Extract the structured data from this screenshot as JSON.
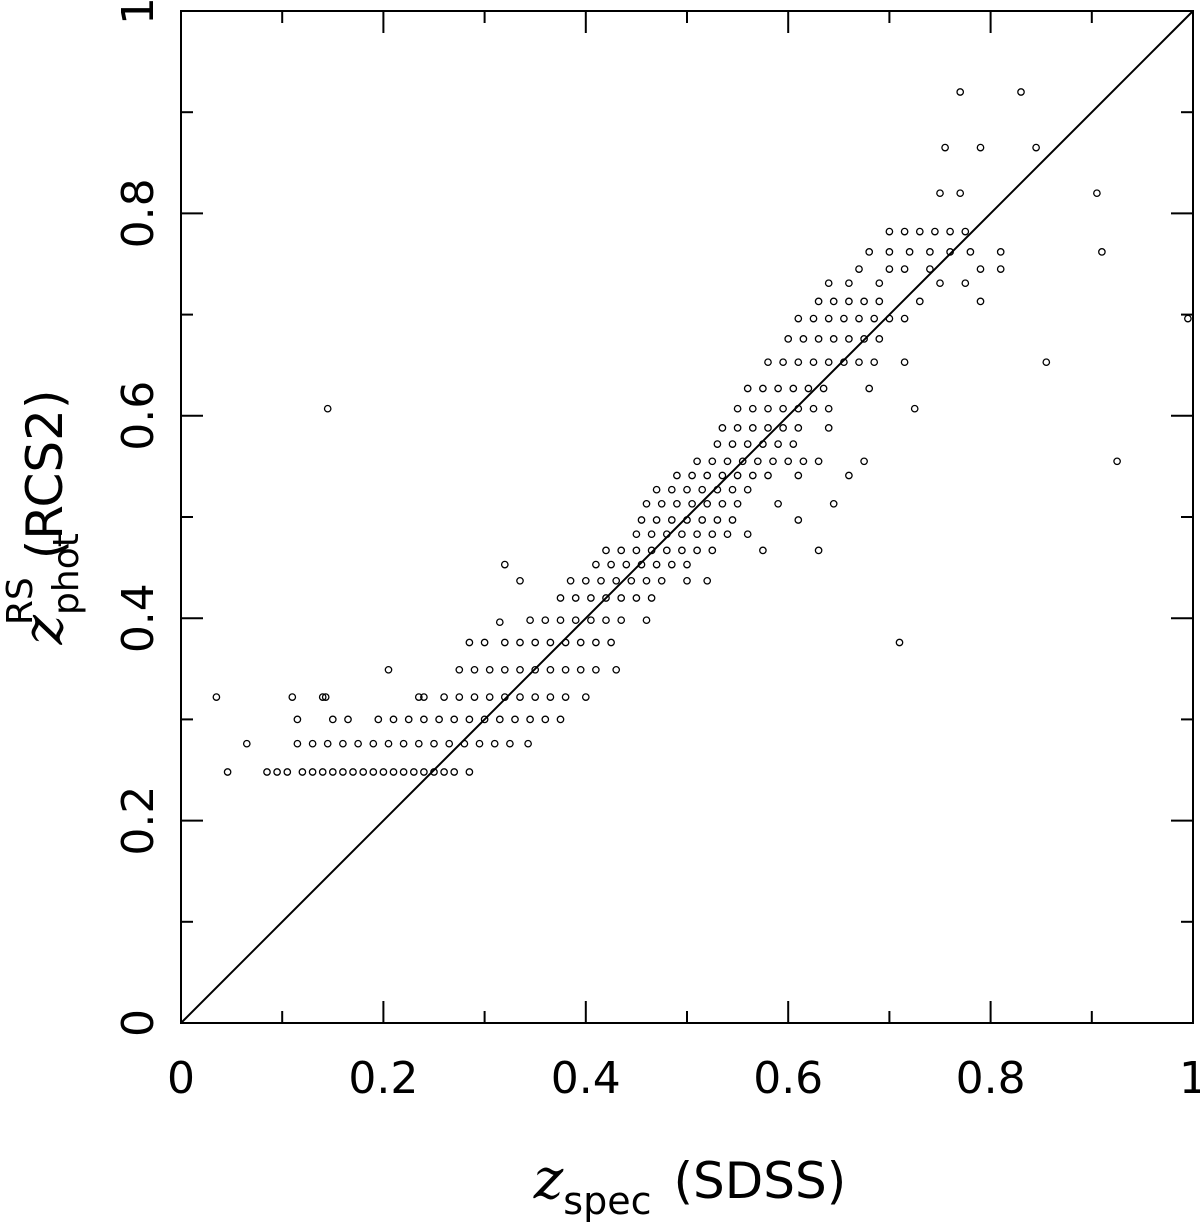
{
  "chart_data": {
    "type": "scatter",
    "xlabel": {
      "symbol": "z",
      "subscript": "spec",
      "text": "(SDSS)"
    },
    "ylabel": {
      "symbol": "z",
      "subscript": "phot",
      "superscript": "RS",
      "text": "(RCS2)"
    },
    "xlim": [
      0,
      1
    ],
    "ylim": [
      0,
      1
    ],
    "xticks": [
      "0",
      "0.2",
      "0.4",
      "0.6",
      "0.8",
      "1"
    ],
    "yticks": [
      "0",
      "0.2",
      "0.4",
      "0.6",
      "0.8",
      "1"
    ],
    "reference_line": {
      "type": "one-to-one",
      "x": [
        0,
        1
      ],
      "y": [
        0,
        1
      ]
    },
    "marker": "open-circle",
    "grid": false,
    "series": [
      {
        "points": [
          [
            0.035,
            0.322
          ],
          [
            0.046,
            0.248
          ],
          [
            0.065,
            0.276
          ],
          [
            0.11,
            0.322
          ],
          [
            0.115,
            0.3
          ],
          [
            0.14,
            0.322
          ],
          [
            0.143,
            0.322
          ],
          [
            0.145,
            0.607
          ],
          [
            0.205,
            0.349
          ],
          [
            0.235,
            0.322
          ],
          [
            0.24,
            0.322
          ],
          [
            0.32,
            0.453
          ],
          [
            0.315,
            0.396
          ],
          [
            0.335,
            0.437
          ],
          [
            0.343,
            0.276
          ],
          [
            0.085,
            0.248
          ],
          [
            0.095,
            0.248
          ],
          [
            0.105,
            0.248
          ],
          [
            0.12,
            0.248
          ],
          [
            0.13,
            0.248
          ],
          [
            0.14,
            0.248
          ],
          [
            0.15,
            0.248
          ],
          [
            0.16,
            0.248
          ],
          [
            0.17,
            0.248
          ],
          [
            0.18,
            0.248
          ],
          [
            0.19,
            0.248
          ],
          [
            0.2,
            0.248
          ],
          [
            0.21,
            0.248
          ],
          [
            0.22,
            0.248
          ],
          [
            0.23,
            0.248
          ],
          [
            0.24,
            0.248
          ],
          [
            0.25,
            0.248
          ],
          [
            0.26,
            0.248
          ],
          [
            0.27,
            0.248
          ],
          [
            0.285,
            0.248
          ],
          [
            0.115,
            0.276
          ],
          [
            0.13,
            0.276
          ],
          [
            0.145,
            0.276
          ],
          [
            0.16,
            0.276
          ],
          [
            0.175,
            0.276
          ],
          [
            0.19,
            0.276
          ],
          [
            0.205,
            0.276
          ],
          [
            0.22,
            0.276
          ],
          [
            0.235,
            0.276
          ],
          [
            0.25,
            0.276
          ],
          [
            0.265,
            0.276
          ],
          [
            0.28,
            0.276
          ],
          [
            0.295,
            0.276
          ],
          [
            0.31,
            0.276
          ],
          [
            0.325,
            0.276
          ],
          [
            0.15,
            0.3
          ],
          [
            0.165,
            0.3
          ],
          [
            0.195,
            0.3
          ],
          [
            0.21,
            0.3
          ],
          [
            0.225,
            0.3
          ],
          [
            0.24,
            0.3
          ],
          [
            0.255,
            0.3
          ],
          [
            0.27,
            0.3
          ],
          [
            0.285,
            0.3
          ],
          [
            0.3,
            0.3
          ],
          [
            0.315,
            0.3
          ],
          [
            0.33,
            0.3
          ],
          [
            0.345,
            0.3
          ],
          [
            0.36,
            0.3
          ],
          [
            0.375,
            0.3
          ],
          [
            0.26,
            0.322
          ],
          [
            0.275,
            0.322
          ],
          [
            0.29,
            0.322
          ],
          [
            0.305,
            0.322
          ],
          [
            0.32,
            0.322
          ],
          [
            0.335,
            0.322
          ],
          [
            0.35,
            0.322
          ],
          [
            0.365,
            0.322
          ],
          [
            0.38,
            0.322
          ],
          [
            0.4,
            0.322
          ],
          [
            0.275,
            0.349
          ],
          [
            0.29,
            0.349
          ],
          [
            0.305,
            0.349
          ],
          [
            0.32,
            0.349
          ],
          [
            0.335,
            0.349
          ],
          [
            0.35,
            0.349
          ],
          [
            0.365,
            0.349
          ],
          [
            0.38,
            0.349
          ],
          [
            0.395,
            0.349
          ],
          [
            0.41,
            0.349
          ],
          [
            0.43,
            0.349
          ],
          [
            0.285,
            0.376
          ],
          [
            0.3,
            0.376
          ],
          [
            0.32,
            0.376
          ],
          [
            0.335,
            0.376
          ],
          [
            0.35,
            0.376
          ],
          [
            0.365,
            0.376
          ],
          [
            0.38,
            0.376
          ],
          [
            0.395,
            0.376
          ],
          [
            0.41,
            0.376
          ],
          [
            0.425,
            0.376
          ],
          [
            0.345,
            0.398
          ],
          [
            0.36,
            0.398
          ],
          [
            0.375,
            0.398
          ],
          [
            0.39,
            0.398
          ],
          [
            0.405,
            0.398
          ],
          [
            0.42,
            0.398
          ],
          [
            0.435,
            0.398
          ],
          [
            0.46,
            0.398
          ],
          [
            0.375,
            0.42
          ],
          [
            0.39,
            0.42
          ],
          [
            0.405,
            0.42
          ],
          [
            0.42,
            0.42
          ],
          [
            0.435,
            0.42
          ],
          [
            0.45,
            0.42
          ],
          [
            0.465,
            0.42
          ],
          [
            0.385,
            0.437
          ],
          [
            0.4,
            0.437
          ],
          [
            0.415,
            0.437
          ],
          [
            0.43,
            0.437
          ],
          [
            0.445,
            0.437
          ],
          [
            0.46,
            0.437
          ],
          [
            0.475,
            0.437
          ],
          [
            0.5,
            0.437
          ],
          [
            0.41,
            0.453
          ],
          [
            0.425,
            0.453
          ],
          [
            0.44,
            0.453
          ],
          [
            0.455,
            0.453
          ],
          [
            0.47,
            0.453
          ],
          [
            0.485,
            0.453
          ],
          [
            0.5,
            0.453
          ],
          [
            0.42,
            0.467
          ],
          [
            0.435,
            0.467
          ],
          [
            0.45,
            0.467
          ],
          [
            0.465,
            0.467
          ],
          [
            0.48,
            0.467
          ],
          [
            0.495,
            0.467
          ],
          [
            0.51,
            0.467
          ],
          [
            0.525,
            0.467
          ],
          [
            0.45,
            0.483
          ],
          [
            0.465,
            0.483
          ],
          [
            0.48,
            0.483
          ],
          [
            0.495,
            0.483
          ],
          [
            0.51,
            0.483
          ],
          [
            0.525,
            0.483
          ],
          [
            0.54,
            0.483
          ],
          [
            0.56,
            0.483
          ],
          [
            0.455,
            0.497
          ],
          [
            0.47,
            0.497
          ],
          [
            0.485,
            0.497
          ],
          [
            0.5,
            0.497
          ],
          [
            0.515,
            0.497
          ],
          [
            0.53,
            0.497
          ],
          [
            0.545,
            0.497
          ],
          [
            0.46,
            0.513
          ],
          [
            0.475,
            0.513
          ],
          [
            0.49,
            0.513
          ],
          [
            0.505,
            0.513
          ],
          [
            0.52,
            0.513
          ],
          [
            0.535,
            0.513
          ],
          [
            0.55,
            0.513
          ],
          [
            0.59,
            0.513
          ],
          [
            0.47,
            0.527
          ],
          [
            0.485,
            0.527
          ],
          [
            0.5,
            0.527
          ],
          [
            0.515,
            0.527
          ],
          [
            0.53,
            0.527
          ],
          [
            0.545,
            0.527
          ],
          [
            0.56,
            0.527
          ],
          [
            0.49,
            0.541
          ],
          [
            0.505,
            0.541
          ],
          [
            0.52,
            0.541
          ],
          [
            0.535,
            0.541
          ],
          [
            0.55,
            0.541
          ],
          [
            0.565,
            0.541
          ],
          [
            0.58,
            0.541
          ],
          [
            0.61,
            0.541
          ],
          [
            0.51,
            0.555
          ],
          [
            0.525,
            0.555
          ],
          [
            0.54,
            0.555
          ],
          [
            0.555,
            0.555
          ],
          [
            0.57,
            0.555
          ],
          [
            0.585,
            0.555
          ],
          [
            0.6,
            0.555
          ],
          [
            0.615,
            0.555
          ],
          [
            0.63,
            0.555
          ],
          [
            0.53,
            0.572
          ],
          [
            0.545,
            0.572
          ],
          [
            0.56,
            0.572
          ],
          [
            0.575,
            0.572
          ],
          [
            0.59,
            0.572
          ],
          [
            0.605,
            0.572
          ],
          [
            0.535,
            0.588
          ],
          [
            0.55,
            0.588
          ],
          [
            0.565,
            0.588
          ],
          [
            0.58,
            0.588
          ],
          [
            0.595,
            0.588
          ],
          [
            0.61,
            0.588
          ],
          [
            0.64,
            0.588
          ],
          [
            0.55,
            0.607
          ],
          [
            0.565,
            0.607
          ],
          [
            0.58,
            0.607
          ],
          [
            0.595,
            0.607
          ],
          [
            0.61,
            0.607
          ],
          [
            0.625,
            0.607
          ],
          [
            0.64,
            0.607
          ],
          [
            0.56,
            0.627
          ],
          [
            0.575,
            0.627
          ],
          [
            0.59,
            0.627
          ],
          [
            0.605,
            0.627
          ],
          [
            0.62,
            0.627
          ],
          [
            0.635,
            0.627
          ],
          [
            0.68,
            0.627
          ],
          [
            0.58,
            0.653
          ],
          [
            0.595,
            0.653
          ],
          [
            0.61,
            0.653
          ],
          [
            0.625,
            0.653
          ],
          [
            0.64,
            0.653
          ],
          [
            0.655,
            0.653
          ],
          [
            0.67,
            0.653
          ],
          [
            0.685,
            0.653
          ],
          [
            0.6,
            0.676
          ],
          [
            0.615,
            0.676
          ],
          [
            0.63,
            0.676
          ],
          [
            0.645,
            0.676
          ],
          [
            0.66,
            0.676
          ],
          [
            0.675,
            0.676
          ],
          [
            0.69,
            0.676
          ],
          [
            0.61,
            0.696
          ],
          [
            0.625,
            0.696
          ],
          [
            0.64,
            0.696
          ],
          [
            0.655,
            0.696
          ],
          [
            0.67,
            0.696
          ],
          [
            0.685,
            0.696
          ],
          [
            0.7,
            0.696
          ],
          [
            0.715,
            0.696
          ],
          [
            0.63,
            0.713
          ],
          [
            0.645,
            0.713
          ],
          [
            0.66,
            0.713
          ],
          [
            0.675,
            0.713
          ],
          [
            0.69,
            0.713
          ],
          [
            0.73,
            0.713
          ],
          [
            0.64,
            0.731
          ],
          [
            0.66,
            0.731
          ],
          [
            0.69,
            0.731
          ],
          [
            0.75,
            0.731
          ],
          [
            0.67,
            0.745
          ],
          [
            0.7,
            0.745
          ],
          [
            0.715,
            0.745
          ],
          [
            0.74,
            0.745
          ],
          [
            0.79,
            0.745
          ],
          [
            0.81,
            0.745
          ],
          [
            0.68,
            0.762
          ],
          [
            0.7,
            0.762
          ],
          [
            0.72,
            0.762
          ],
          [
            0.74,
            0.762
          ],
          [
            0.76,
            0.762
          ],
          [
            0.78,
            0.762
          ],
          [
            0.81,
            0.762
          ],
          [
            0.7,
            0.782
          ],
          [
            0.715,
            0.782
          ],
          [
            0.73,
            0.782
          ],
          [
            0.745,
            0.782
          ],
          [
            0.76,
            0.782
          ],
          [
            0.775,
            0.782
          ],
          [
            0.75,
            0.82
          ],
          [
            0.77,
            0.82
          ],
          [
            0.905,
            0.82
          ],
          [
            0.755,
            0.865
          ],
          [
            0.79,
            0.865
          ],
          [
            0.845,
            0.865
          ],
          [
            0.77,
            0.92
          ],
          [
            0.83,
            0.92
          ],
          [
            0.71,
            0.376
          ],
          [
            0.725,
            0.607
          ],
          [
            0.775,
            0.731
          ],
          [
            0.79,
            0.713
          ],
          [
            0.855,
            0.653
          ],
          [
            0.91,
            0.762
          ],
          [
            0.925,
            0.555
          ],
          [
            0.995,
            0.696
          ],
          [
            0.63,
            0.467
          ],
          [
            0.645,
            0.513
          ],
          [
            0.675,
            0.555
          ],
          [
            0.66,
            0.541
          ],
          [
            0.715,
            0.653
          ],
          [
            0.52,
            0.437
          ],
          [
            0.575,
            0.467
          ],
          [
            0.61,
            0.497
          ]
        ]
      }
    ]
  }
}
